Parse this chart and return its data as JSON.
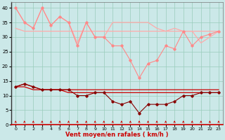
{
  "x": [
    0,
    1,
    2,
    3,
    4,
    5,
    6,
    7,
    8,
    9,
    10,
    11,
    12,
    13,
    14,
    15,
    16,
    17,
    18,
    19,
    20,
    21,
    22,
    23
  ],
  "series": {
    "rafales_upper": [
      40,
      35,
      33,
      40,
      34,
      37,
      35,
      28,
      35,
      30,
      30,
      35,
      35,
      35,
      35,
      35,
      33,
      32,
      33,
      32,
      32,
      28,
      30,
      32
    ],
    "rafales_lower": [
      33,
      32,
      32,
      32,
      32,
      32,
      32,
      32,
      32,
      32,
      32,
      32,
      32,
      32,
      32,
      32,
      32,
      32,
      32,
      32,
      32,
      32,
      32,
      32
    ],
    "rafales_mid": [
      40,
      35,
      33,
      40,
      34,
      37,
      35,
      27,
      35,
      30,
      30,
      27,
      27,
      22,
      16,
      21,
      22,
      27,
      26,
      32,
      27,
      30,
      31,
      32
    ],
    "vent_upper": [
      13,
      14,
      13,
      12,
      12,
      12,
      12,
      12,
      12,
      12,
      12,
      12,
      12,
      12,
      12,
      12,
      12,
      12,
      12,
      12,
      12,
      12,
      12,
      12
    ],
    "vent_lower": [
      13,
      13,
      12,
      12,
      12,
      12,
      11,
      11,
      11,
      11,
      11,
      11,
      11,
      11,
      11,
      11,
      11,
      11,
      11,
      11,
      11,
      11,
      11,
      11
    ],
    "vent_moyen": [
      13,
      14,
      13,
      12,
      12,
      12,
      12,
      10,
      10,
      11,
      11,
      8,
      7,
      8,
      4,
      7,
      7,
      7,
      8,
      10,
      10,
      11,
      11,
      11
    ]
  },
  "colors": {
    "rafales_upper": "#ffaaaa",
    "rafales_lower": "#ffaaaa",
    "rafales_mid": "#ff8888",
    "vent_upper": "#cc0000",
    "vent_lower": "#cc0000",
    "vent_moyen": "#880000"
  },
  "bg_color": "#cbe8e8",
  "grid_color": "#99ccbb",
  "xlabel": "Vent moyen/en rafales ( km/h )",
  "xlabel_color": "#cc0000",
  "arrow_color": "#cc0000",
  "ylim": [
    0,
    42
  ],
  "yticks": [
    0,
    5,
    10,
    15,
    20,
    25,
    30,
    35,
    40
  ],
  "xticks": [
    0,
    1,
    2,
    3,
    4,
    5,
    6,
    7,
    8,
    9,
    10,
    11,
    12,
    13,
    14,
    15,
    16,
    17,
    18,
    19,
    20,
    21,
    22,
    23
  ],
  "xticklabels": [
    "0",
    "1",
    "2",
    "3",
    "4",
    "5",
    "6",
    "7",
    "8",
    "9",
    "10",
    "11",
    "12",
    "13",
    "14",
    "15",
    "16",
    "17",
    "18",
    "19",
    "20",
    "21",
    "22",
    "23"
  ]
}
